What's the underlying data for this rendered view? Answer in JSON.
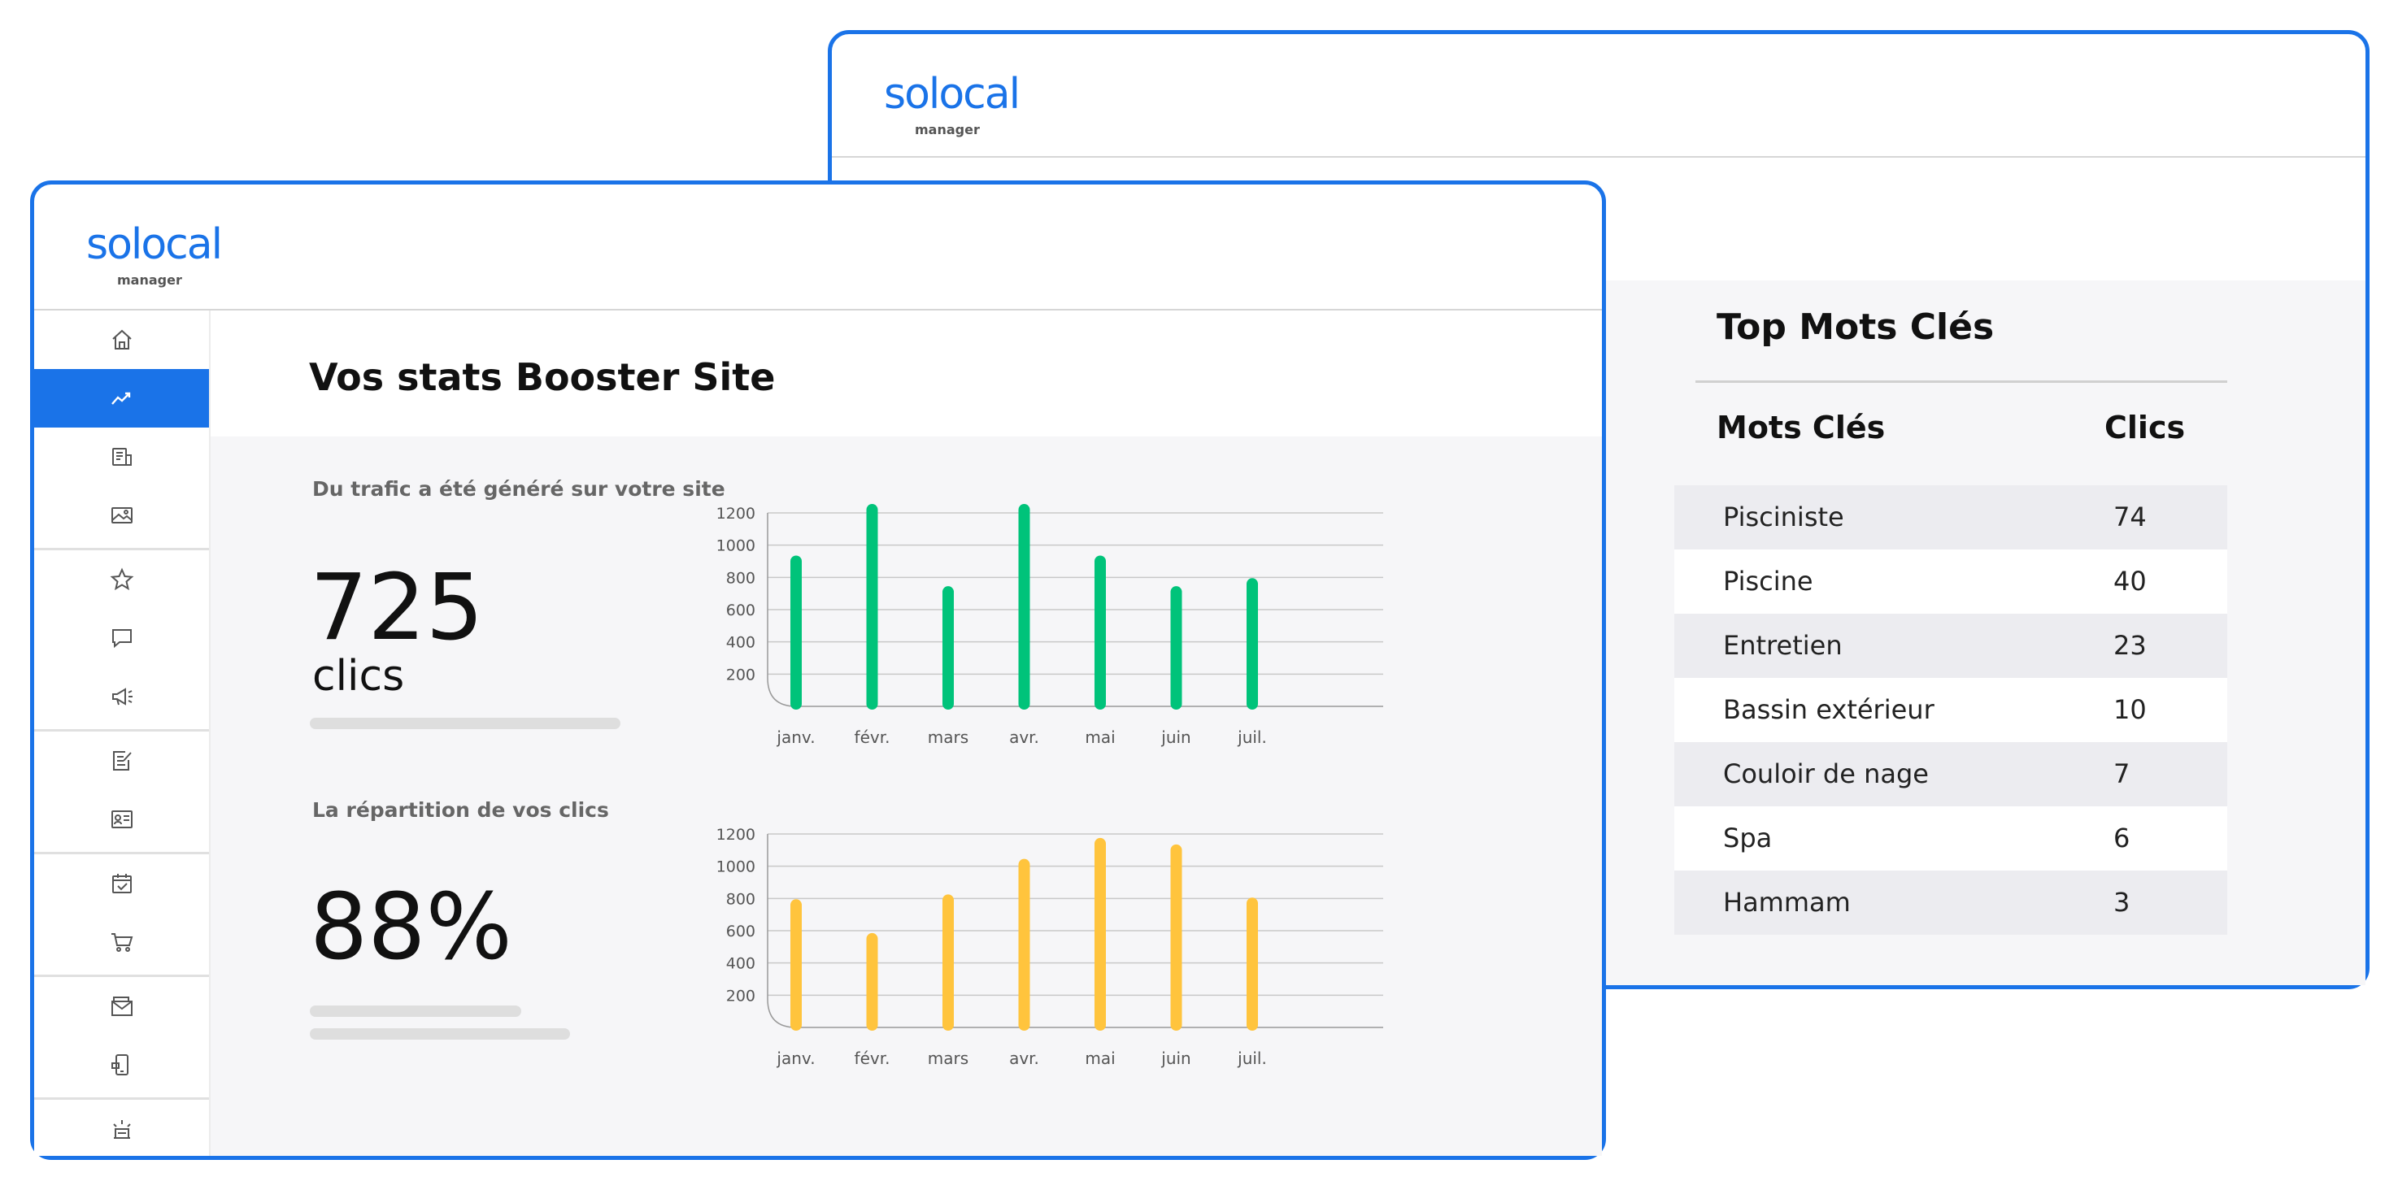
{
  "brand": {
    "name": "solocal",
    "sub": "manager"
  },
  "back": {
    "title": "Top Mots Clés",
    "col_keyword": "Mots Clés",
    "col_clicks": "Clics",
    "rows": [
      {
        "keyword": "Pisciniste",
        "clicks": "74"
      },
      {
        "keyword": "Piscine",
        "clicks": "40"
      },
      {
        "keyword": "Entretien",
        "clicks": "23"
      },
      {
        "keyword": "Bassin extérieur",
        "clicks": "10"
      },
      {
        "keyword": "Couloir de nage",
        "clicks": "7"
      },
      {
        "keyword": "Spa",
        "clicks": "6"
      },
      {
        "keyword": "Hammam",
        "clicks": "3"
      }
    ]
  },
  "front": {
    "page_title": "Vos stats Booster Site",
    "traffic_label": "Du trafic a été généré sur votre site",
    "traffic_value": "725",
    "traffic_unit": "clics",
    "repartition_label": "La répartition de vos clics",
    "repartition_value": "88%"
  },
  "sidebar": {
    "items": [
      {
        "icon": "home-icon"
      },
      {
        "icon": "trending-icon"
      },
      {
        "icon": "listing-icon"
      },
      {
        "icon": "image-icon"
      },
      {
        "icon": "star-icon"
      },
      {
        "icon": "comment-icon"
      },
      {
        "icon": "megaphone-icon"
      },
      {
        "icon": "edit-document-icon"
      },
      {
        "icon": "contact-card-icon"
      },
      {
        "icon": "calendar-check-icon"
      },
      {
        "icon": "cart-icon"
      },
      {
        "icon": "mail-icon"
      },
      {
        "icon": "mobile-icon"
      },
      {
        "icon": "spotlight-icon"
      }
    ],
    "active_index": 1
  },
  "colors": {
    "accent": "#1a73e8",
    "green": "#00c37a",
    "yellow": "#ffc43d"
  },
  "chart_data": [
    {
      "type": "bar",
      "categories": [
        "janv.",
        "févr.",
        "mars",
        "avr.",
        "mai",
        "juin",
        "juil."
      ],
      "values": [
        900,
        1220,
        710,
        1220,
        900,
        710,
        760
      ],
      "yticks": [
        200,
        400,
        600,
        800,
        1000,
        1200
      ],
      "ylim": [
        0,
        1200
      ],
      "color": "#00c37a",
      "grid": true
    },
    {
      "type": "bar",
      "categories": [
        "janv.",
        "févr.",
        "mars",
        "avr.",
        "mai",
        "juin",
        "juil."
      ],
      "values": [
        760,
        550,
        790,
        1010,
        1140,
        1100,
        770
      ],
      "yticks": [
        200,
        400,
        600,
        800,
        1000,
        1200
      ],
      "ylim": [
        0,
        1200
      ],
      "color": "#ffc43d",
      "grid": true
    }
  ]
}
